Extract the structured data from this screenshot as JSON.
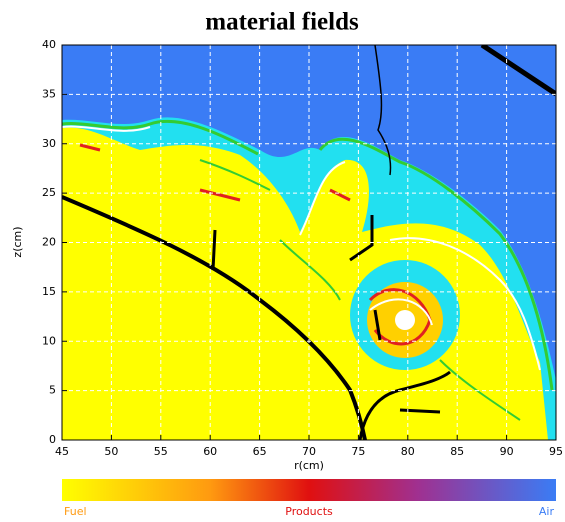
{
  "chart_data": {
    "type": "field",
    "title": "material fields",
    "xlabel": "r(cm)",
    "ylabel": "z(cm)",
    "xlim": [
      45,
      95
    ],
    "ylim": [
      0,
      40
    ],
    "xticks": [
      45,
      50,
      55,
      60,
      65,
      70,
      75,
      80,
      85,
      90,
      95
    ],
    "yticks": [
      0,
      5,
      10,
      15,
      20,
      25,
      30,
      35,
      40
    ],
    "grid": true,
    "colorbar_labels": [
      "Fuel",
      "Products",
      "Air"
    ]
  }
}
